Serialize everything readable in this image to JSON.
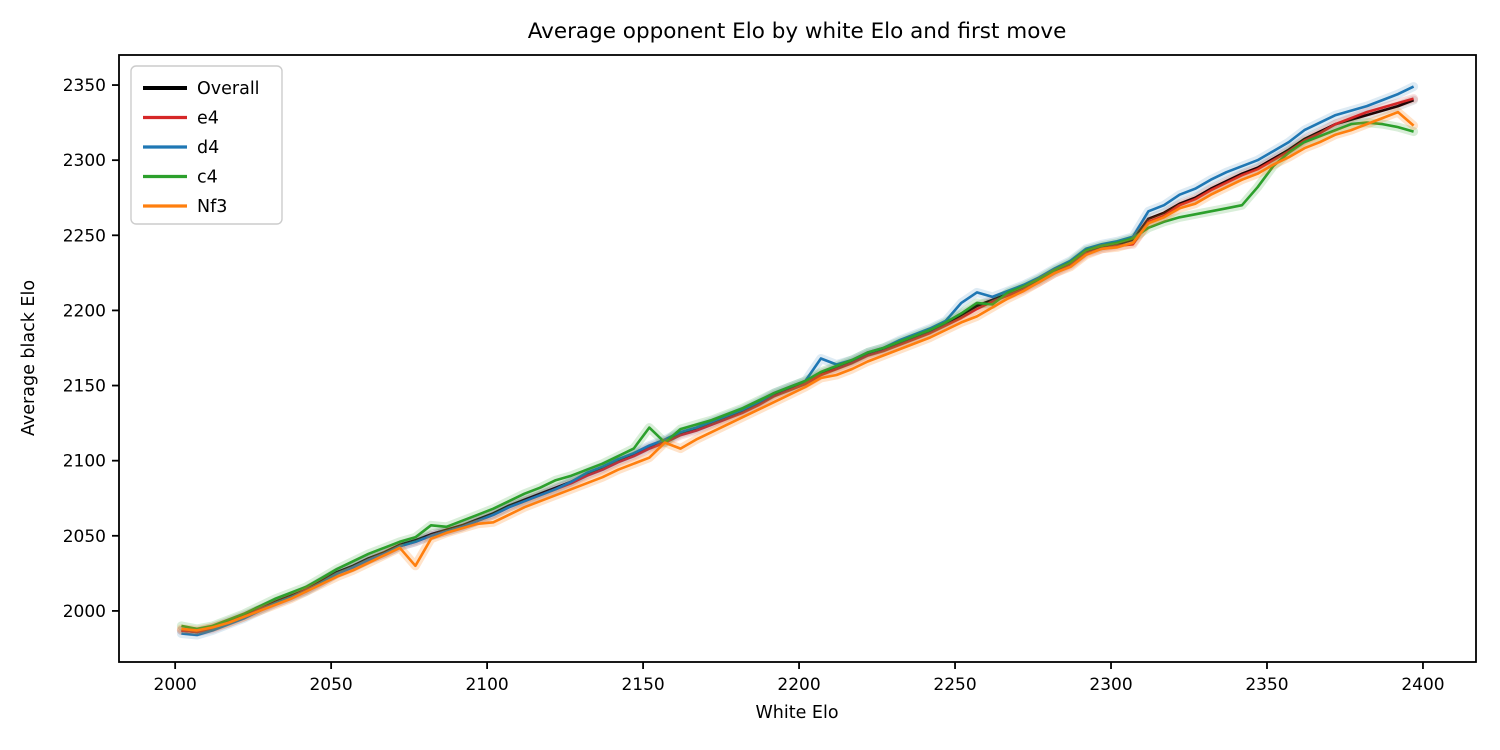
{
  "chart_data": {
    "type": "line",
    "title": "Average opponent Elo by white Elo and first move",
    "xlabel": "White Elo",
    "ylabel": "Average black Elo",
    "xlim": [
      1982,
      2417
    ],
    "ylim": [
      1966,
      2370
    ],
    "xticks": [
      2000,
      2050,
      2100,
      2150,
      2200,
      2250,
      2300,
      2350,
      2400
    ],
    "yticks": [
      2000,
      2050,
      2100,
      2150,
      2200,
      2250,
      2300,
      2350
    ],
    "grid": false,
    "legend_position": "upper left",
    "x": [
      2002,
      2007,
      2012,
      2017,
      2022,
      2027,
      2032,
      2037,
      2042,
      2047,
      2052,
      2057,
      2062,
      2067,
      2072,
      2077,
      2082,
      2087,
      2092,
      2097,
      2102,
      2107,
      2112,
      2117,
      2122,
      2127,
      2132,
      2137,
      2142,
      2147,
      2152,
      2157,
      2162,
      2167,
      2172,
      2177,
      2182,
      2187,
      2192,
      2197,
      2202,
      2207,
      2212,
      2217,
      2222,
      2227,
      2232,
      2237,
      2242,
      2247,
      2252,
      2257,
      2262,
      2267,
      2272,
      2277,
      2282,
      2287,
      2292,
      2297,
      2302,
      2307,
      2312,
      2317,
      2322,
      2327,
      2332,
      2337,
      2342,
      2347,
      2352,
      2357,
      2362,
      2367,
      2372,
      2377,
      2382,
      2387,
      2392,
      2397
    ],
    "series": [
      {
        "name": "Overall",
        "color": "#000000",
        "halo_opacity": 0.1,
        "values": [
          1987,
          1986,
          1989,
          1993,
          1997,
          2001,
          2006,
          2010,
          2014,
          2020,
          2026,
          2030,
          2035,
          2039,
          2044,
          2047,
          2051,
          2054,
          2057,
          2061,
          2065,
          2070,
          2074,
          2078,
          2082,
          2086,
          2091,
          2095,
          2100,
          2104,
          2109,
          2113,
          2118,
          2121,
          2125,
          2129,
          2133,
          2138,
          2144,
          2148,
          2152,
          2158,
          2162,
          2166,
          2171,
          2174,
          2178,
          2182,
          2186,
          2191,
          2197,
          2203,
          2207,
          2211,
          2215,
          2220,
          2226,
          2231,
          2239,
          2242,
          2244,
          2247,
          2261,
          2265,
          2271,
          2275,
          2281,
          2286,
          2291,
          2295,
          2301,
          2307,
          2314,
          2319,
          2324,
          2327,
          2330,
          2333,
          2336,
          2340
        ]
      },
      {
        "name": "e4",
        "color": "#d62728",
        "halo_opacity": 0.15,
        "values": [
          1987,
          1986,
          1988,
          1992,
          1996,
          2001,
          2005,
          2009,
          2014,
          2019,
          2025,
          2029,
          2034,
          2038,
          2043,
          2046,
          2050,
          2053,
          2056,
          2060,
          2064,
          2069,
          2073,
          2077,
          2081,
          2085,
          2090,
          2094,
          2099,
          2103,
          2108,
          2112,
          2117,
          2120,
          2124,
          2128,
          2132,
          2137,
          2143,
          2147,
          2151,
          2157,
          2161,
          2165,
          2170,
          2173,
          2177,
          2181,
          2185,
          2190,
          2195,
          2201,
          2206,
          2210,
          2214,
          2219,
          2225,
          2230,
          2238,
          2241,
          2243,
          2244,
          2259,
          2263,
          2270,
          2274,
          2280,
          2285,
          2290,
          2294,
          2300,
          2306,
          2313,
          2318,
          2324,
          2328,
          2332,
          2335,
          2338,
          2341
        ]
      },
      {
        "name": "d4",
        "color": "#1f77b4",
        "halo_opacity": 0.15,
        "values": [
          1985,
          1984,
          1987,
          1991,
          1995,
          2000,
          2005,
          2009,
          2013,
          2019,
          2025,
          2029,
          2034,
          2038,
          2043,
          2046,
          2050,
          2053,
          2056,
          2060,
          2064,
          2069,
          2073,
          2077,
          2081,
          2086,
          2092,
          2096,
          2101,
          2105,
          2110,
          2114,
          2119,
          2122,
          2126,
          2130,
          2134,
          2139,
          2145,
          2149,
          2153,
          2168,
          2164,
          2167,
          2172,
          2175,
          2180,
          2184,
          2188,
          2193,
          2205,
          2212,
          2209,
          2213,
          2217,
          2222,
          2228,
          2233,
          2241,
          2244,
          2246,
          2249,
          2266,
          2270,
          2277,
          2281,
          2287,
          2292,
          2296,
          2300,
          2306,
          2312,
          2320,
          2325,
          2330,
          2333,
          2336,
          2340,
          2344,
          2349
        ]
      },
      {
        "name": "c4",
        "color": "#2ca02c",
        "halo_opacity": 0.18,
        "values": [
          1990,
          1988,
          1990,
          1994,
          1998,
          2003,
          2008,
          2012,
          2016,
          2022,
          2028,
          2033,
          2038,
          2042,
          2046,
          2049,
          2057,
          2056,
          2060,
          2064,
          2068,
          2073,
          2078,
          2082,
          2087,
          2090,
          2094,
          2098,
          2103,
          2108,
          2122,
          2112,
          2121,
          2124,
          2127,
          2131,
          2135,
          2140,
          2145,
          2149,
          2153,
          2159,
          2163,
          2167,
          2172,
          2175,
          2179,
          2183,
          2187,
          2192,
          2198,
          2205,
          2204,
          2212,
          2216,
          2221,
          2227,
          2232,
          2240,
          2243,
          2245,
          2248,
          2255,
          2259,
          2262,
          2264,
          2266,
          2268,
          2270,
          2282,
          2296,
          2305,
          2312,
          2316,
          2320,
          2324,
          2325,
          2324,
          2322,
          2319
        ]
      },
      {
        "name": "Nf3",
        "color": "#ff7f0e",
        "halo_opacity": 0.22,
        "values": [
          1988,
          1987,
          1989,
          1992,
          1996,
          2000,
          2004,
          2008,
          2013,
          2018,
          2023,
          2027,
          2032,
          2037,
          2042,
          2030,
          2048,
          2052,
          2055,
          2058,
          2059,
          2064,
          2069,
          2073,
          2077,
          2081,
          2085,
          2089,
          2094,
          2098,
          2102,
          2112,
          2108,
          2114,
          2119,
          2124,
          2129,
          2134,
          2139,
          2144,
          2149,
          2155,
          2157,
          2161,
          2166,
          2170,
          2174,
          2178,
          2182,
          2187,
          2192,
          2196,
          2202,
          2208,
          2213,
          2219,
          2225,
          2229,
          2237,
          2241,
          2242,
          2245,
          2258,
          2262,
          2268,
          2271,
          2277,
          2282,
          2287,
          2291,
          2297,
          2302,
          2308,
          2312,
          2317,
          2320,
          2324,
          2328,
          2332,
          2323
        ]
      }
    ]
  }
}
